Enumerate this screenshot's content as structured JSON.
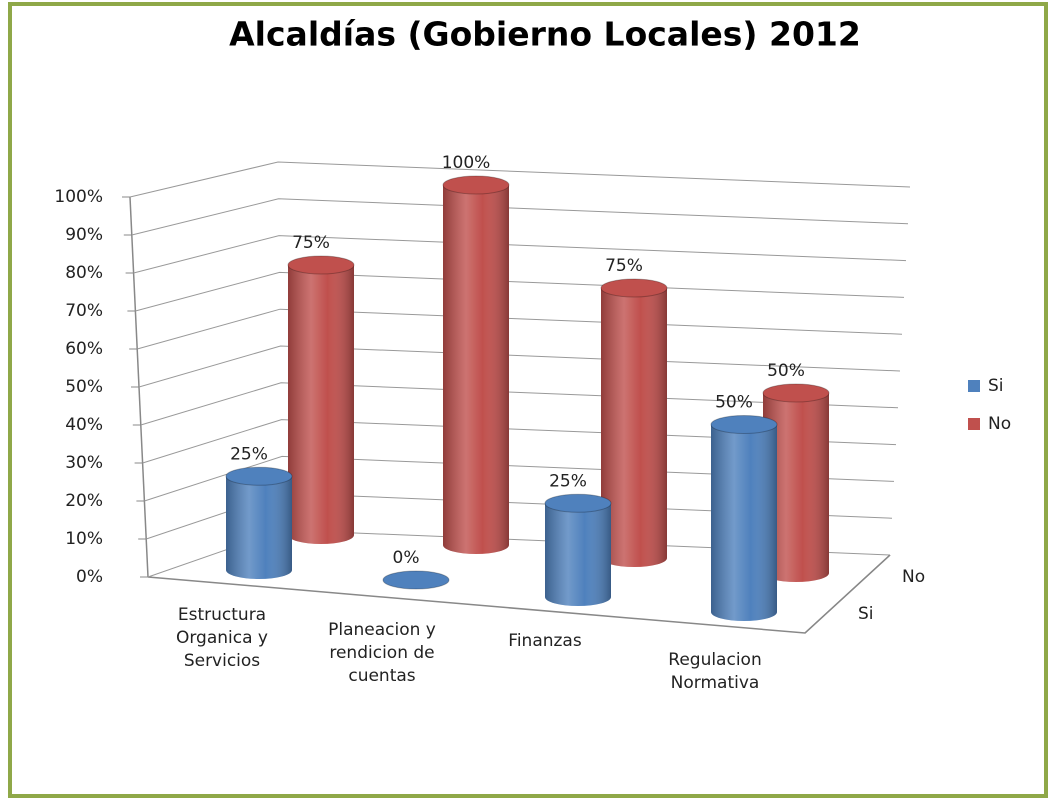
{
  "chart_data": {
    "type": "bar3d",
    "title": "Alcaldías (Gobierno Locales)  2012",
    "categories": [
      "Estructura Organica y Servicios",
      "Planeacion y rendicion de cuentas",
      "Finanzas",
      "Regulacion Normativa"
    ],
    "series": [
      {
        "name": "Si",
        "color": "#4f81bd",
        "values": [
          25,
          0,
          25,
          50
        ],
        "value_labels": [
          "25%",
          "0%",
          "25%",
          "50%"
        ]
      },
      {
        "name": "No",
        "color": "#c0504d",
        "values": [
          75,
          100,
          75,
          50
        ],
        "value_labels": [
          "75%",
          "100%",
          "75%",
          "50%"
        ]
      }
    ],
    "ylim": [
      0,
      100
    ],
    "yticks": [
      {
        "value": 0,
        "label": "0%"
      },
      {
        "value": 10,
        "label": "10%"
      },
      {
        "value": 20,
        "label": "20%"
      },
      {
        "value": 30,
        "label": "30%"
      },
      {
        "value": 40,
        "label": "40%"
      },
      {
        "value": 50,
        "label": "50%"
      },
      {
        "value": 60,
        "label": "60%"
      },
      {
        "value": 70,
        "label": "70%"
      },
      {
        "value": 80,
        "label": "80%"
      },
      {
        "value": 90,
        "label": "90%"
      },
      {
        "value": 100,
        "label": "100%"
      }
    ],
    "grid": true,
    "legend": "right"
  }
}
